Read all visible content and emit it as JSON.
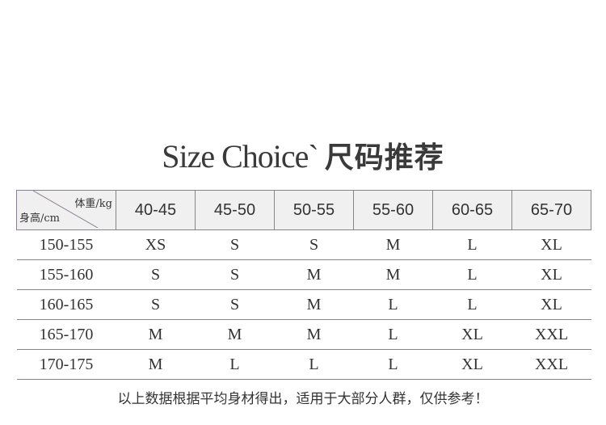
{
  "title": {
    "en": "Size Choice`",
    "cn": "尺码推荐"
  },
  "table": {
    "corner_weight": "体重/kg",
    "corner_height": "身高/cm",
    "weights": [
      "40-45",
      "45-50",
      "50-55",
      "55-60",
      "60-65",
      "65-70"
    ],
    "rows": [
      {
        "height": "150-155",
        "sizes": [
          "XS",
          "S",
          "S",
          "M",
          "L",
          "XL"
        ]
      },
      {
        "height": "155-160",
        "sizes": [
          "S",
          "S",
          "M",
          "M",
          "L",
          "XL"
        ]
      },
      {
        "height": "160-165",
        "sizes": [
          "S",
          "S",
          "M",
          "L",
          "L",
          "XL"
        ]
      },
      {
        "height": "165-170",
        "sizes": [
          "M",
          "M",
          "M",
          "L",
          "XL",
          "XXL"
        ]
      },
      {
        "height": "170-175",
        "sizes": [
          "M",
          "L",
          "L",
          "L",
          "XL",
          "XXL"
        ]
      }
    ]
  },
  "note": "以上数据根据平均身材得出，适用于大部分人群，仅供参考！",
  "colors": {
    "header_bg": "#f0f0f0",
    "border": "#8a8092",
    "text": "#333333"
  }
}
